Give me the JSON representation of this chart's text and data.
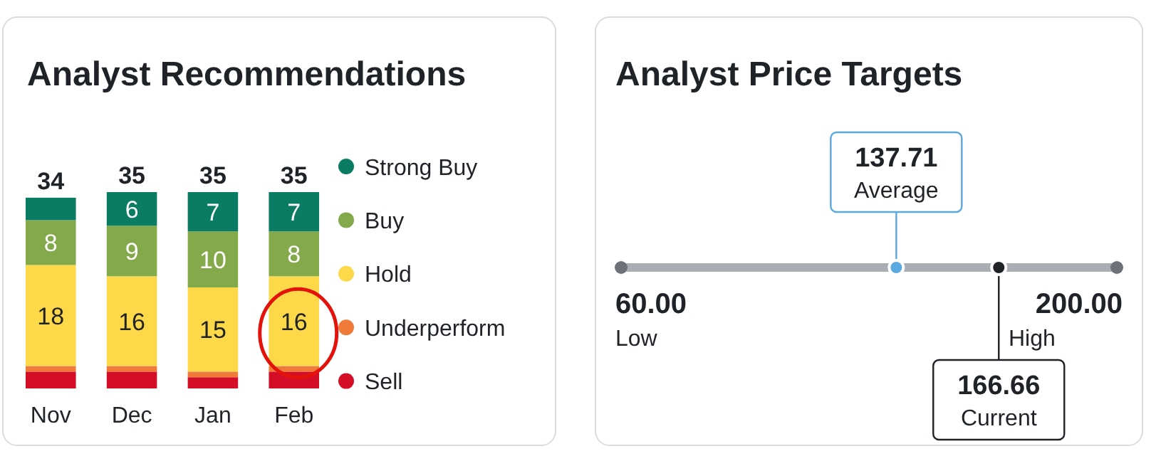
{
  "chart_data": [
    {
      "type": "bar",
      "title": "Analyst Recommendations",
      "stacked": true,
      "legend": "right",
      "categories": [
        "Nov",
        "Dec",
        "Jan",
        "Feb"
      ],
      "series": [
        {
          "name": "Sell",
          "color": "#d50e27",
          "values": [
            3,
            3,
            2,
            3
          ],
          "value_labels": [
            null,
            null,
            null,
            null
          ]
        },
        {
          "name": "Underperform",
          "color": "#f07a3a",
          "values": [
            1,
            1,
            1,
            1
          ],
          "value_labels": [
            null,
            null,
            null,
            null
          ]
        },
        {
          "name": "Hold",
          "color": "#fdd94a",
          "values": [
            18,
            16,
            15,
            16
          ],
          "value_labels": [
            "18",
            "16",
            "15",
            "16"
          ]
        },
        {
          "name": "Buy",
          "color": "#84a94a",
          "values": [
            8,
            9,
            10,
            8
          ],
          "value_labels": [
            "8",
            "9",
            "10",
            "8"
          ]
        },
        {
          "name": "Strong Buy",
          "color": "#0a7c63",
          "values": [
            4,
            6,
            7,
            7
          ],
          "value_labels": [
            null,
            "6",
            "7",
            "7"
          ]
        }
      ],
      "totals": [
        "34",
        "35",
        "35",
        "35"
      ]
    },
    {
      "type": "other",
      "title": "Analyst Price Targets",
      "categories": [
        "Low",
        "Average",
        "Current",
        "High"
      ],
      "values": [
        60,
        137.71,
        166.66,
        200
      ],
      "value_labels": [
        "60.00",
        "137.71",
        "166.66",
        "200.00"
      ],
      "colors": [
        "#6b7079",
        "#5aa9e0",
        "#1f2328",
        "#6b7079"
      ]
    }
  ]
}
